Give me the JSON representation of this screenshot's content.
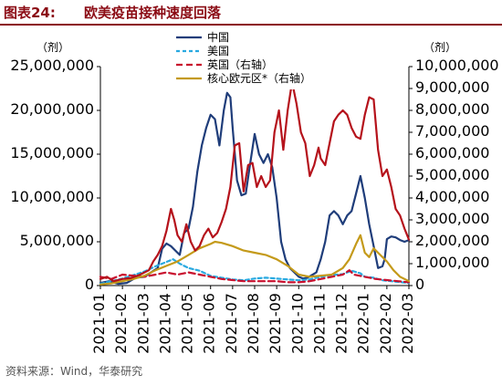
{
  "figure": {
    "label": "图表24:",
    "title": "欧美疫苗接种速度回落"
  },
  "source": "资料来源：Wind，华泰研究",
  "chart_data": {
    "type": "line",
    "left_unit": "（剂）",
    "right_unit": "（剂）",
    "y_left": {
      "ticks": [
        0,
        5000000,
        10000000,
        15000000,
        20000000,
        25000000
      ],
      "range": [
        0,
        25000000
      ]
    },
    "y_right": {
      "ticks": [
        0,
        1000000,
        2000000,
        3000000,
        4000000,
        5000000,
        6000000,
        7000000,
        8000000,
        9000000,
        10000000
      ],
      "range": [
        0,
        10000000
      ]
    },
    "x_labels": [
      "2021-01",
      "2021-02",
      "2021-03",
      "2021-04",
      "2021-05",
      "2021-06",
      "2021-07",
      "2021-08",
      "2021-09",
      "2021-10",
      "2021-11",
      "2021-12",
      "2022-01",
      "2022-02",
      "2022-03"
    ],
    "x_range": [
      0,
      14
    ],
    "legend_placement": "top-center",
    "series": [
      {
        "name": "中国",
        "axis": "left",
        "color": "#1f3d7a",
        "dash": "solid",
        "points": [
          [
            0,
            300000
          ],
          [
            0.4,
            500000
          ],
          [
            0.8,
            200000
          ],
          [
            1.2,
            300000
          ],
          [
            1.6,
            900000
          ],
          [
            2,
            1000000
          ],
          [
            2.3,
            1500000
          ],
          [
            2.6,
            2000000
          ],
          [
            2.8,
            4200000
          ],
          [
            3,
            4800000
          ],
          [
            3.2,
            4500000
          ],
          [
            3.4,
            4000000
          ],
          [
            3.6,
            3500000
          ],
          [
            3.8,
            6000000
          ],
          [
            4,
            6500000
          ],
          [
            4.2,
            9000000
          ],
          [
            4.4,
            13000000
          ],
          [
            4.6,
            16000000
          ],
          [
            4.8,
            18000000
          ],
          [
            5,
            19500000
          ],
          [
            5.2,
            19000000
          ],
          [
            5.4,
            16000000
          ],
          [
            5.6,
            20000000
          ],
          [
            5.75,
            22000000
          ],
          [
            5.9,
            21500000
          ],
          [
            6,
            18000000
          ],
          [
            6.2,
            12000000
          ],
          [
            6.4,
            10300000
          ],
          [
            6.6,
            10500000
          ],
          [
            6.8,
            14000000
          ],
          [
            7,
            17300000
          ],
          [
            7.2,
            15000000
          ],
          [
            7.4,
            14000000
          ],
          [
            7.6,
            15000000
          ],
          [
            7.8,
            13500000
          ],
          [
            8,
            10000000
          ],
          [
            8.2,
            5000000
          ],
          [
            8.4,
            3000000
          ],
          [
            8.6,
            2000000
          ],
          [
            8.8,
            1500000
          ],
          [
            9,
            1000000
          ],
          [
            9.2,
            800000
          ],
          [
            9.4,
            900000
          ],
          [
            9.6,
            1200000
          ],
          [
            9.8,
            1500000
          ],
          [
            10,
            3000000
          ],
          [
            10.2,
            5000000
          ],
          [
            10.4,
            8000000
          ],
          [
            10.6,
            8500000
          ],
          [
            10.8,
            8000000
          ],
          [
            11,
            7000000
          ],
          [
            11.2,
            8000000
          ],
          [
            11.4,
            8500000
          ],
          [
            11.6,
            10500000
          ],
          [
            11.8,
            12500000
          ],
          [
            12,
            10000000
          ],
          [
            12.2,
            7000000
          ],
          [
            12.4,
            4500000
          ],
          [
            12.6,
            2000000
          ],
          [
            12.8,
            2200000
          ],
          [
            12.9,
            3000000
          ],
          [
            13,
            5300000
          ],
          [
            13.2,
            5600000
          ],
          [
            13.4,
            5500000
          ],
          [
            13.6,
            5200000
          ],
          [
            13.8,
            5000000
          ],
          [
            14,
            5200000
          ]
        ]
      },
      {
        "name": "美国",
        "axis": "left",
        "color": "#29a9e0",
        "dash": "4,3",
        "points": [
          [
            0,
            200000
          ],
          [
            0.5,
            500000
          ],
          [
            1,
            800000
          ],
          [
            1.5,
            1200000
          ],
          [
            2,
            1600000
          ],
          [
            2.5,
            2200000
          ],
          [
            3,
            2700000
          ],
          [
            3.3,
            3000000
          ],
          [
            3.6,
            2500000
          ],
          [
            4,
            2000000
          ],
          [
            4.5,
            1700000
          ],
          [
            5,
            1100000
          ],
          [
            5.5,
            900000
          ],
          [
            6,
            700000
          ],
          [
            6.5,
            600000
          ],
          [
            7,
            800000
          ],
          [
            7.5,
            900000
          ],
          [
            8,
            800000
          ],
          [
            8.5,
            700000
          ],
          [
            9,
            600000
          ],
          [
            9.5,
            700000
          ],
          [
            10,
            1000000
          ],
          [
            10.5,
            1200000
          ],
          [
            11,
            1300000
          ],
          [
            11.4,
            1700000
          ],
          [
            11.8,
            1400000
          ],
          [
            12,
            1000000
          ],
          [
            12.4,
            900000
          ],
          [
            12.8,
            600000
          ],
          [
            13.2,
            500000
          ],
          [
            13.6,
            400000
          ],
          [
            14,
            300000
          ]
        ]
      },
      {
        "name": "英国（右轴）",
        "axis": "right",
        "color": "#c8102e",
        "dash": "7,4",
        "points": [
          [
            0,
            400000
          ],
          [
            0.5,
            300000
          ],
          [
            1,
            500000
          ],
          [
            1.5,
            450000
          ],
          [
            2,
            400000
          ],
          [
            2.5,
            500000
          ],
          [
            3,
            600000
          ],
          [
            3.5,
            500000
          ],
          [
            4,
            600000
          ],
          [
            4.5,
            500000
          ],
          [
            5,
            400000
          ],
          [
            5.5,
            300000
          ],
          [
            6,
            250000
          ],
          [
            6.5,
            200000
          ],
          [
            7,
            200000
          ],
          [
            7.5,
            200000
          ],
          [
            8,
            200000
          ],
          [
            8.5,
            150000
          ],
          [
            9,
            150000
          ],
          [
            9.5,
            200000
          ],
          [
            10,
            300000
          ],
          [
            10.5,
            400000
          ],
          [
            11,
            500000
          ],
          [
            11.3,
            700000
          ],
          [
            11.5,
            500000
          ],
          [
            12,
            400000
          ],
          [
            12.5,
            300000
          ],
          [
            13,
            250000
          ],
          [
            13.5,
            200000
          ],
          [
            14,
            150000
          ]
        ]
      },
      {
        "name": "核心欧元区*（右轴）",
        "axis": "right",
        "color": "#c49a1a",
        "dash": "solid",
        "points": [
          [
            0,
            50000
          ],
          [
            0.5,
            100000
          ],
          [
            1,
            200000
          ],
          [
            1.5,
            300000
          ],
          [
            2,
            450000
          ],
          [
            2.5,
            700000
          ],
          [
            3,
            900000
          ],
          [
            3.5,
            1100000
          ],
          [
            4,
            1400000
          ],
          [
            4.5,
            1700000
          ],
          [
            5,
            1900000
          ],
          [
            5.2,
            2000000
          ],
          [
            5.5,
            1950000
          ],
          [
            6,
            1800000
          ],
          [
            6.5,
            1600000
          ],
          [
            7,
            1500000
          ],
          [
            7.5,
            1400000
          ],
          [
            8,
            1200000
          ],
          [
            8.5,
            900000
          ],
          [
            9,
            500000
          ],
          [
            9.5,
            400000
          ],
          [
            10,
            450000
          ],
          [
            10.5,
            500000
          ],
          [
            11,
            800000
          ],
          [
            11.3,
            1200000
          ],
          [
            11.6,
            1900000
          ],
          [
            11.8,
            2300000
          ],
          [
            12,
            1500000
          ],
          [
            12.2,
            1300000
          ],
          [
            12.4,
            1700000
          ],
          [
            12.6,
            1500000
          ],
          [
            13,
            1100000
          ],
          [
            13.3,
            700000
          ],
          [
            13.6,
            400000
          ],
          [
            14,
            200000
          ]
        ]
      },
      {
        "name": "英国（右轴）main",
        "axis": "right",
        "color": "#b5121b",
        "dash": "solid",
        "points": [
          [
            0,
            300000
          ],
          [
            0.3,
            400000
          ],
          [
            0.6,
            200000
          ],
          [
            1,
            300000
          ],
          [
            1.4,
            350000
          ],
          [
            1.8,
            500000
          ],
          [
            2.2,
            700000
          ],
          [
            2.4,
            1100000
          ],
          [
            2.6,
            1400000
          ],
          [
            2.8,
            1800000
          ],
          [
            3,
            2500000
          ],
          [
            3.2,
            3500000
          ],
          [
            3.35,
            3000000
          ],
          [
            3.5,
            2300000
          ],
          [
            3.7,
            2000000
          ],
          [
            3.9,
            2800000
          ],
          [
            4.1,
            2000000
          ],
          [
            4.3,
            1600000
          ],
          [
            4.5,
            1800000
          ],
          [
            4.7,
            2300000
          ],
          [
            4.9,
            2600000
          ],
          [
            5.1,
            2200000
          ],
          [
            5.3,
            2400000
          ],
          [
            5.5,
            2900000
          ],
          [
            5.7,
            3500000
          ],
          [
            5.9,
            4500000
          ],
          [
            6.1,
            6400000
          ],
          [
            6.3,
            6500000
          ],
          [
            6.5,
            4300000
          ],
          [
            6.7,
            5500000
          ],
          [
            6.9,
            5600000
          ],
          [
            7.1,
            4500000
          ],
          [
            7.3,
            5000000
          ],
          [
            7.5,
            4500000
          ],
          [
            7.7,
            4800000
          ],
          [
            7.9,
            7000000
          ],
          [
            8.1,
            8000000
          ],
          [
            8.3,
            6200000
          ],
          [
            8.5,
            8000000
          ],
          [
            8.7,
            9300000
          ],
          [
            8.9,
            8300000
          ],
          [
            9.1,
            7000000
          ],
          [
            9.3,
            6500000
          ],
          [
            9.5,
            5000000
          ],
          [
            9.7,
            5500000
          ],
          [
            9.9,
            6300000
          ],
          [
            10,
            5800000
          ],
          [
            10.2,
            5500000
          ],
          [
            10.4,
            6500000
          ],
          [
            10.6,
            7500000
          ],
          [
            10.8,
            7800000
          ],
          [
            11,
            8000000
          ],
          [
            11.2,
            7800000
          ],
          [
            11.4,
            7200000
          ],
          [
            11.6,
            6800000
          ],
          [
            11.8,
            6700000
          ],
          [
            12,
            7800000
          ],
          [
            12.2,
            8600000
          ],
          [
            12.4,
            8500000
          ],
          [
            12.6,
            6200000
          ],
          [
            12.8,
            5000000
          ],
          [
            13,
            5300000
          ],
          [
            13.2,
            4500000
          ],
          [
            13.4,
            3500000
          ],
          [
            13.6,
            3200000
          ],
          [
            13.8,
            2600000
          ],
          [
            14,
            2100000
          ]
        ]
      }
    ]
  },
  "legend": [
    {
      "label": "中国",
      "color": "#1f3d7a",
      "dash": "solid"
    },
    {
      "label": "美国",
      "color": "#29a9e0",
      "dash": "4,3"
    },
    {
      "label": "英国（右轴）",
      "color": "#c8102e",
      "dash": "7,4"
    },
    {
      "label": "核心欧元区*（右轴）",
      "color": "#c49a1a",
      "dash": "solid"
    }
  ]
}
